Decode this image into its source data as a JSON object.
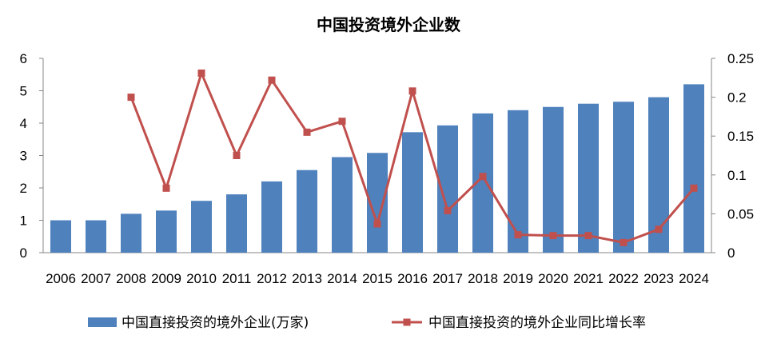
{
  "chart_data": {
    "type": "bar",
    "title": "中国投资境外企业数",
    "categories": [
      "2006",
      "2007",
      "2008",
      "2009",
      "2010",
      "2011",
      "2012",
      "2013",
      "2014",
      "2015",
      "2016",
      "2017",
      "2018",
      "2019",
      "2020",
      "2021",
      "2022",
      "2023",
      "2024"
    ],
    "series": [
      {
        "name": "中国直接投资的境外企业(万家)",
        "type": "bar",
        "axis": "left",
        "color": "#4F81BD",
        "values": [
          1.0,
          1.0,
          1.2,
          1.3,
          1.6,
          1.8,
          2.2,
          2.55,
          2.95,
          3.08,
          3.72,
          3.93,
          4.3,
          4.4,
          4.5,
          4.6,
          4.66,
          4.8,
          5.2
        ]
      },
      {
        "name": "中国直接投资的境外企业同比增长率",
        "type": "line",
        "axis": "right",
        "color": "#C0504D",
        "marker": "square",
        "values": [
          null,
          null,
          0.2,
          0.083,
          0.231,
          0.125,
          0.222,
          0.155,
          0.169,
          0.037,
          0.208,
          0.054,
          0.098,
          0.023,
          0.022,
          0.022,
          0.013,
          0.03,
          0.083
        ]
      }
    ],
    "y_left": {
      "ylim": [
        0,
        6
      ],
      "ticks": [
        "0",
        "1",
        "2",
        "3",
        "4",
        "5",
        "6"
      ]
    },
    "y_right": {
      "ylim": [
        0,
        0.25
      ],
      "ticks": [
        "0",
        "0.05",
        "0.1",
        "0.15",
        "0.2",
        "0.25"
      ]
    },
    "grid": false,
    "legend_position": "bottom"
  }
}
